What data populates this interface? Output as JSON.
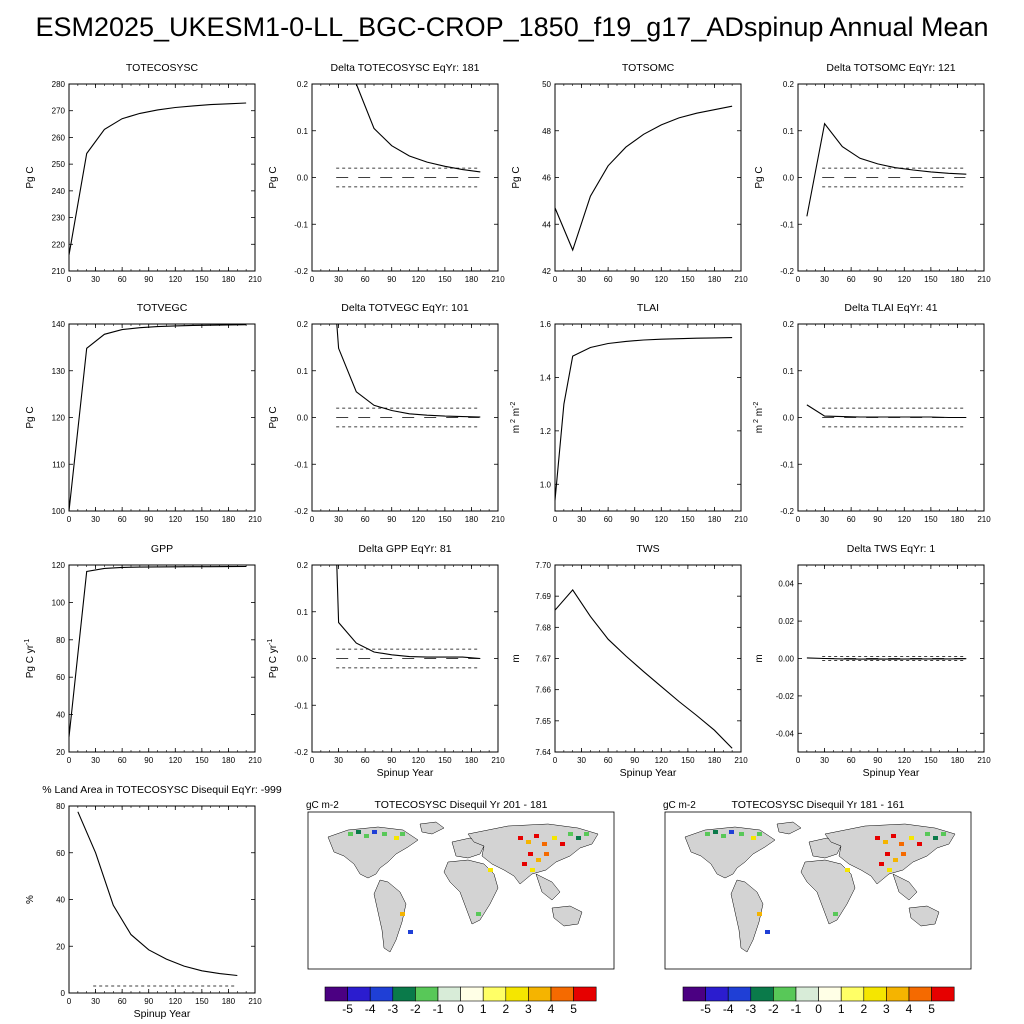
{
  "page_title": "ESM2025_UKESM1-0-LL_BGC-CROP_1850_f19_g17_ADspinup Annual Mean",
  "chart_data": [
    {
      "id": "totecosysc",
      "type": "line",
      "title": "TOTECOSYSC",
      "ylabel": "Pg C",
      "xlabel": "",
      "xlim": [
        0,
        210
      ],
      "ylim": [
        210,
        280
      ],
      "xticks": [
        0,
        30,
        60,
        90,
        120,
        150,
        180,
        210
      ],
      "yticks": [
        210,
        220,
        230,
        240,
        250,
        260,
        270,
        280
      ],
      "series": [
        {
          "x": [
            0,
            20,
            40,
            60,
            80,
            100,
            120,
            140,
            160,
            180,
            200
          ],
          "y": [
            216,
            254,
            263,
            267,
            269,
            270.3,
            271.2,
            271.8,
            272.3,
            272.6,
            272.9
          ]
        }
      ],
      "dashed": []
    },
    {
      "id": "delta-totecosysc",
      "type": "line",
      "title": "Delta TOTECOSYSC EqYr: 181",
      "ylabel": "Pg C",
      "xlabel": "",
      "xlim": [
        0,
        210
      ],
      "ylim": [
        -0.2,
        0.2
      ],
      "xticks": [
        0,
        30,
        60,
        90,
        120,
        150,
        180,
        210
      ],
      "yticks": [
        -0.2,
        -0.1,
        0,
        0.1,
        0.2
      ],
      "series": [
        {
          "x": [
            50,
            70,
            90,
            110,
            130,
            150,
            170,
            190
          ],
          "y": [
            0.2,
            0.105,
            0.068,
            0.046,
            0.033,
            0.024,
            0.017,
            0.012
          ]
        }
      ],
      "dashed": [
        0.02,
        -0.02
      ],
      "zero_dash": true
    },
    {
      "id": "totsomc",
      "type": "line",
      "title": "TOTSOMC",
      "ylabel": "Pg C",
      "xlabel": "",
      "xlim": [
        0,
        210
      ],
      "ylim": [
        42,
        50
      ],
      "xticks": [
        0,
        30,
        60,
        90,
        120,
        150,
        180,
        210
      ],
      "yticks": [
        42,
        44,
        46,
        48,
        50
      ],
      "series": [
        {
          "x": [
            0,
            20,
            40,
            60,
            80,
            100,
            120,
            140,
            160,
            180,
            200
          ],
          "y": [
            44.7,
            42.9,
            45.2,
            46.5,
            47.3,
            47.85,
            48.25,
            48.55,
            48.75,
            48.9,
            49.05
          ]
        }
      ],
      "dashed": []
    },
    {
      "id": "delta-totsomc",
      "type": "line",
      "title": "Delta TOTSOMC EqYr: 121",
      "ylabel": "Pg C",
      "xlabel": "",
      "xlim": [
        0,
        210
      ],
      "ylim": [
        -0.2,
        0.2
      ],
      "xticks": [
        0,
        30,
        60,
        90,
        120,
        150,
        180,
        210
      ],
      "yticks": [
        -0.2,
        -0.1,
        0,
        0.1,
        0.2
      ],
      "series": [
        {
          "x": [
            10,
            30,
            50,
            70,
            90,
            110,
            130,
            150,
            170,
            190
          ],
          "y": [
            -0.083,
            0.115,
            0.066,
            0.041,
            0.029,
            0.021,
            0.016,
            0.012,
            0.009,
            0.007
          ]
        }
      ],
      "dashed": [
        0.02,
        -0.02
      ],
      "zero_dash": true
    },
    {
      "id": "totvegc",
      "type": "line",
      "title": "TOTVEGC",
      "ylabel": "Pg C",
      "xlabel": "",
      "xlim": [
        0,
        210
      ],
      "ylim": [
        100,
        140
      ],
      "xticks": [
        0,
        30,
        60,
        90,
        120,
        150,
        180,
        210
      ],
      "yticks": [
        100,
        110,
        120,
        130,
        140
      ],
      "series": [
        {
          "x": [
            0,
            20,
            40,
            60,
            80,
            100,
            120,
            140,
            160,
            180,
            200
          ],
          "y": [
            100,
            134.8,
            137.8,
            138.8,
            139.2,
            139.45,
            139.6,
            139.7,
            139.75,
            139.8,
            139.85
          ]
        }
      ],
      "dashed": []
    },
    {
      "id": "delta-totvegc",
      "type": "line",
      "title": "Delta TOTVEGC EqYr: 101",
      "ylabel": "Pg C",
      "xlabel": "",
      "xlim": [
        0,
        210
      ],
      "ylim": [
        -0.2,
        0.2
      ],
      "xticks": [
        0,
        30,
        60,
        90,
        120,
        150,
        180,
        210
      ],
      "yticks": [
        -0.2,
        -0.1,
        0,
        0.1,
        0.2
      ],
      "series": [
        {
          "x": [
            28,
            30,
            50,
            70,
            90,
            110,
            130,
            150,
            170,
            190
          ],
          "y": [
            0.2,
            0.148,
            0.055,
            0.026,
            0.015,
            0.008,
            0.005,
            0.003,
            0.002,
            0.001
          ]
        }
      ],
      "dashed": [
        0.02,
        -0.02
      ],
      "zero_dash": true
    },
    {
      "id": "tlai",
      "type": "line",
      "title": "TLAI",
      "ylabel": "m 2 m-2",
      "xlabel": "",
      "xlim": [
        0,
        210
      ],
      "ylim": [
        0.9,
        1.6
      ],
      "xticks": [
        0,
        30,
        60,
        90,
        120,
        150,
        180,
        210
      ],
      "yticks": [
        1.0,
        1.2,
        1.4,
        1.6
      ],
      "series": [
        {
          "x": [
            0,
            10,
            20,
            40,
            60,
            80,
            100,
            120,
            140,
            160,
            180,
            200
          ],
          "y": [
            0.94,
            1.3,
            1.48,
            1.512,
            1.527,
            1.535,
            1.54,
            1.543,
            1.545,
            1.547,
            1.548,
            1.549
          ]
        }
      ],
      "dashed": []
    },
    {
      "id": "delta-tlai",
      "type": "line",
      "title": "Delta TLAI EqYr: 41",
      "ylabel": "m 2 m-2",
      "xlabel": "",
      "xlim": [
        0,
        210
      ],
      "ylim": [
        -0.2,
        0.2
      ],
      "xticks": [
        0,
        30,
        60,
        90,
        120,
        150,
        180,
        210
      ],
      "yticks": [
        -0.2,
        -0.1,
        0,
        0.1,
        0.2
      ],
      "series": [
        {
          "x": [
            10,
            30,
            50,
            70,
            90,
            110,
            130,
            150,
            170,
            190
          ],
          "y": [
            0.027,
            0.003,
            0.002,
            0.001,
            0.001,
            0.001,
            0.001,
            0.001,
            0.0,
            0.0
          ]
        }
      ],
      "dashed": [
        0.02,
        -0.02
      ],
      "zero_dash": true
    },
    {
      "id": "gpp",
      "type": "line",
      "title": "GPP",
      "ylabel": "Pg C yr-1",
      "xlabel": "",
      "xlim": [
        0,
        210
      ],
      "ylim": [
        20,
        120
      ],
      "xticks": [
        0,
        30,
        60,
        90,
        120,
        150,
        180,
        210
      ],
      "yticks": [
        20,
        40,
        60,
        80,
        100,
        120
      ],
      "series": [
        {
          "x": [
            0,
            20,
            40,
            60,
            80,
            100,
            120,
            140,
            160,
            180,
            200
          ],
          "y": [
            28,
            116.5,
            118.2,
            118.7,
            118.9,
            119.0,
            119.05,
            119.1,
            119.1,
            119.15,
            119.2
          ]
        }
      ],
      "dashed": []
    },
    {
      "id": "delta-gpp",
      "type": "line",
      "title": "Delta GPP EqYr: 81",
      "ylabel": "Pg C yr-1",
      "xlabel": "Spinup Year",
      "xlim": [
        0,
        210
      ],
      "ylim": [
        -0.2,
        0.2
      ],
      "xticks": [
        0,
        30,
        60,
        90,
        120,
        150,
        180,
        210
      ],
      "yticks": [
        -0.2,
        -0.1,
        0,
        0.1,
        0.2
      ],
      "series": [
        {
          "x": [
            28,
            30,
            50,
            70,
            90,
            110,
            130,
            150,
            170,
            190
          ],
          "y": [
            0.2,
            0.077,
            0.033,
            0.014,
            0.008,
            0.004,
            0.003,
            0.003,
            0.003,
            0.0
          ]
        }
      ],
      "dashed": [
        0.02,
        -0.02
      ],
      "zero_dash": true
    },
    {
      "id": "tws",
      "type": "line",
      "title": "TWS",
      "ylabel": "m",
      "xlabel": "Spinup Year",
      "xlim": [
        0,
        210
      ],
      "ylim": [
        7.64,
        7.7
      ],
      "xticks": [
        0,
        30,
        60,
        90,
        120,
        150,
        180,
        210
      ],
      "yticks": [
        7.64,
        7.65,
        7.66,
        7.67,
        7.68,
        7.69,
        7.7
      ],
      "series": [
        {
          "x": [
            0,
            20,
            40,
            60,
            80,
            100,
            120,
            140,
            160,
            180,
            200
          ],
          "y": [
            7.6855,
            7.692,
            7.6835,
            7.6762,
            7.6708,
            7.6658,
            7.661,
            7.6562,
            7.6517,
            7.647,
            7.6412
          ]
        }
      ],
      "dashed": []
    },
    {
      "id": "delta-tws",
      "type": "line",
      "title": "Delta TWS EqYr: 1",
      "ylabel": "m",
      "xlabel": "Spinup Year",
      "xlim": [
        0,
        210
      ],
      "ylim": [
        -0.05,
        0.05
      ],
      "xticks": [
        0,
        30,
        60,
        90,
        120,
        150,
        180,
        210
      ],
      "yticks": [
        -0.04,
        -0.02,
        0,
        0.02,
        0.04
      ],
      "series": [
        {
          "x": [
            10,
            30,
            50,
            70,
            90,
            110,
            130,
            150,
            170,
            190
          ],
          "y": [
            0.0003,
            0.0,
            -0.0002,
            -0.0003,
            -0.0002,
            -0.0003,
            -0.0002,
            -0.0002,
            -0.0002,
            -0.0001
          ]
        }
      ],
      "dashed": [
        0.001,
        -0.001
      ],
      "zero_dash": true
    },
    {
      "id": "pct-land",
      "type": "line",
      "title": "% Land Area in TOTECOSYSC Disequil EqYr: -999",
      "ylabel": "%",
      "xlabel": "Spinup Year",
      "xlim": [
        0,
        210
      ],
      "ylim": [
        0,
        80
      ],
      "xticks": [
        0,
        30,
        60,
        90,
        120,
        150,
        180,
        210
      ],
      "yticks": [
        0,
        20,
        40,
        60,
        80
      ],
      "series": [
        {
          "x": [
            10,
            30,
            50,
            70,
            90,
            110,
            130,
            150,
            170,
            190
          ],
          "y": [
            77.5,
            60,
            37.5,
            25,
            18.5,
            14.5,
            11.5,
            9.5,
            8.3,
            7.5
          ]
        }
      ],
      "dashed": [
        3
      ],
      "zero_dash": false
    }
  ],
  "maps": [
    {
      "id": "map-201-181",
      "units": "gC m-2",
      "title": "TOTECOSYSC Disequil Yr 201 - 181"
    },
    {
      "id": "map-181-161",
      "units": "gC m-2",
      "title": "TOTECOSYSC Disequil Yr 181 - 161"
    }
  ],
  "colorbar": {
    "labels": [
      "-5",
      "-4",
      "-3",
      "-2",
      "-1",
      "0",
      "1",
      "2",
      "3",
      "4",
      "5"
    ],
    "colors": [
      "#4b0082",
      "#2b1ccf",
      "#1f3fd6",
      "#0a7a4a",
      "#58c858",
      "#d8ecd8",
      "#ffffe6",
      "#ffff66",
      "#f5e600",
      "#f5b400",
      "#f56a00",
      "#e60000"
    ]
  }
}
